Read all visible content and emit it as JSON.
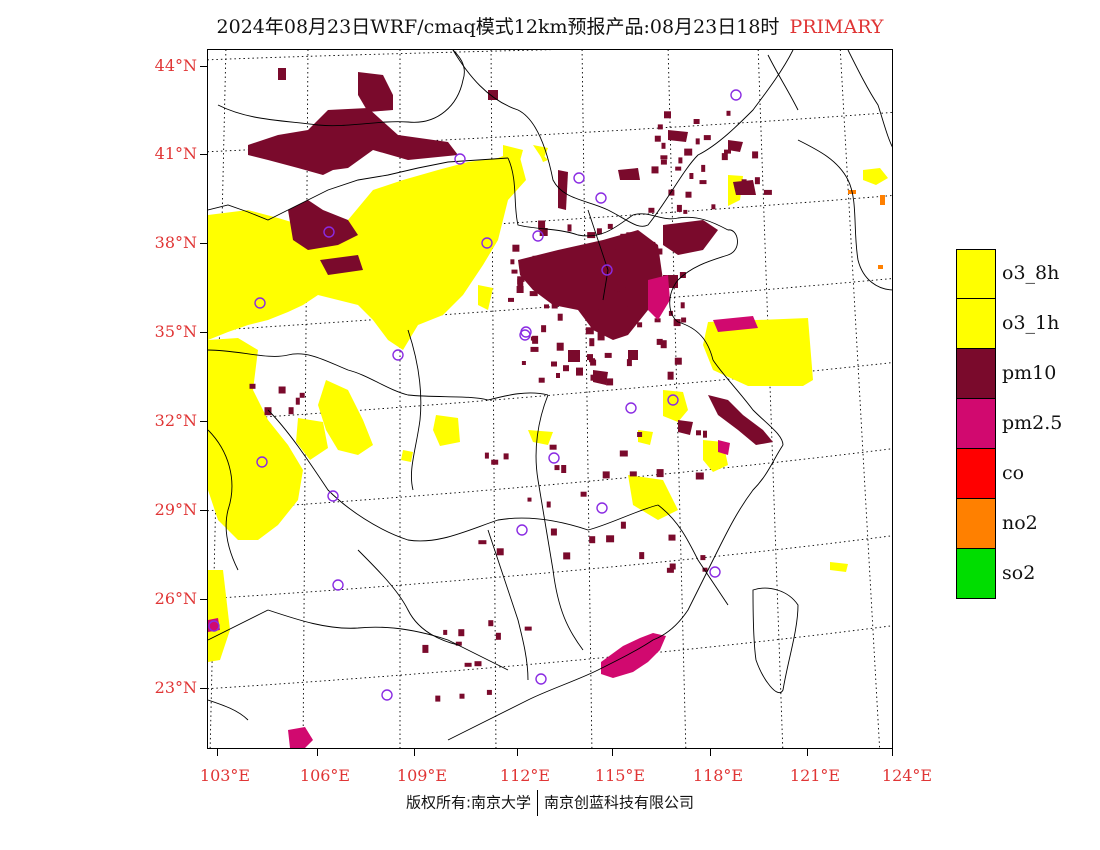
{
  "title": {
    "main": "2024年08月23日WRF/cmaq模式12km预报产品:08月23日18时",
    "tag": "PRIMARY"
  },
  "latitude_labels": [
    "44°N",
    "41°N",
    "38°N",
    "35°N",
    "32°N",
    "29°N",
    "26°N",
    "23°N"
  ],
  "longitude_labels": [
    "103°E",
    "106°E",
    "109°E",
    "112°E",
    "115°E",
    "118°E",
    "121°E",
    "124°E"
  ],
  "legend": [
    {
      "label": "o3_8h",
      "color": "#ffff00"
    },
    {
      "label": "o3_1h",
      "color": "#ffff00"
    },
    {
      "label": "pm10",
      "color": "#7a0a2c"
    },
    {
      "label": "pm2.5",
      "color": "#d1096f"
    },
    {
      "label": "co",
      "color": "#ff0000"
    },
    {
      "label": "no2",
      "color": "#ff8000"
    },
    {
      "label": "so2",
      "color": "#00dd00"
    }
  ],
  "footer": {
    "copyright": "版权所有:南京大学",
    "company": "南京创蓝科技有限公司"
  },
  "colors": {
    "accent": "#e03535",
    "o3": "#ffff00",
    "pm10": "#7a0a2c",
    "pm25": "#d1096f",
    "no2": "#ff8000",
    "station": "#8a2be2"
  }
}
